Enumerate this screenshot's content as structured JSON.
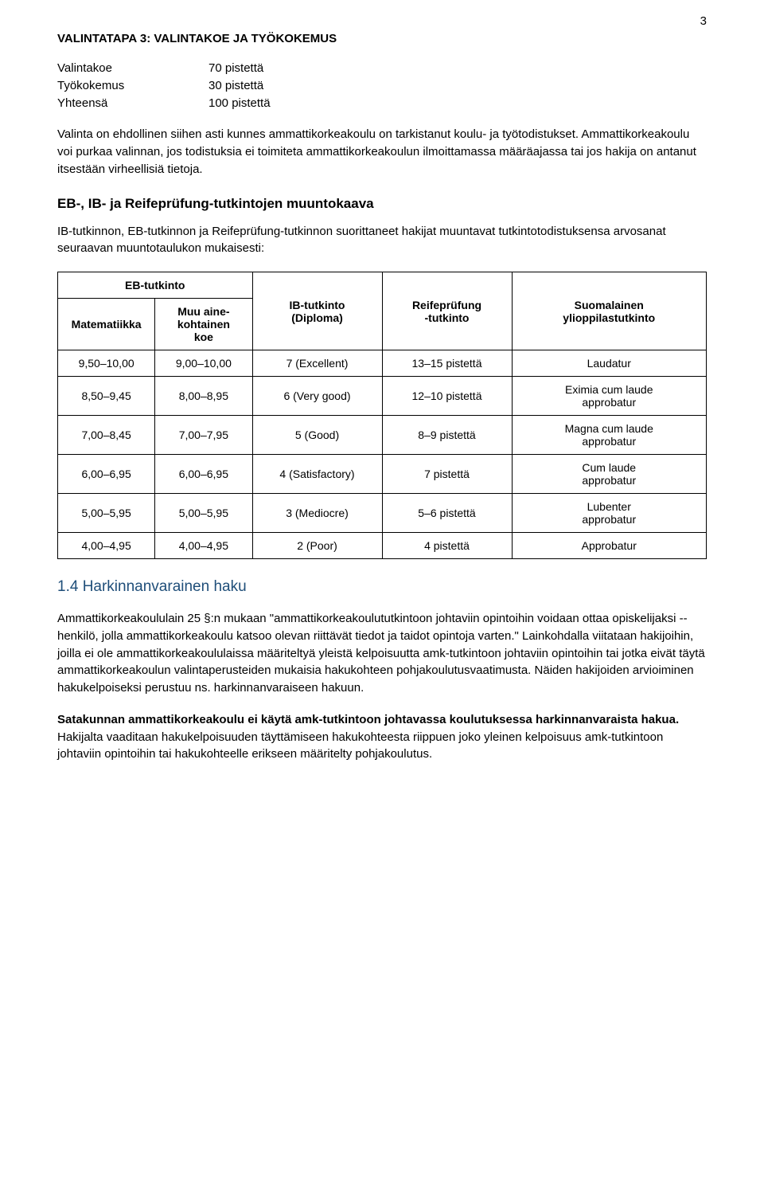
{
  "page_number": "3",
  "section_title": "VALINTATAPA 3: VALINTAKOE JA TYÖKOKEMUS",
  "points": {
    "rows": [
      {
        "label": "Valintakoe",
        "value": "70 pistettä"
      },
      {
        "label": "Työkokemus",
        "value": "30 pistettä"
      },
      {
        "label": "Yhteensä",
        "value": "100 pistettä"
      }
    ]
  },
  "para1": "Valinta on ehdollinen siihen asti kunnes ammattikorkeakoulu on tarkistanut koulu- ja työtodistukset. Ammattikorkeakoulu voi purkaa valinnan, jos todistuksia ei toimiteta ammattikorkeakoulun ilmoittamassa määräajassa tai jos hakija on antanut itsestään virheellisiä tietoja.",
  "kaava_title": "EB-, IB- ja Reifeprüfung-tutkintojen muuntokaava",
  "para2": "IB-tutkinnon, EB-tutkinnon ja Reifeprüfung-tutkinnon suorittaneet hakijat muuntavat tutkintotodistuksensa arvosanat seuraavan muuntotaulukon mukaisesti:",
  "table": {
    "header": {
      "eb": "EB-tutkinto",
      "eb_sub1": "Matematiikka",
      "eb_sub2": "Muu aine-\nkohtainen\nkoe",
      "ib": "IB-tutkinto\n(Diploma)",
      "rp": "Reifeprüfung\n-tutkinto",
      "su": "Suomalainen\nylioppilastutkinto"
    },
    "rows": [
      {
        "c1": "9,50–10,00",
        "c2": "9,00–10,00",
        "c3": "7 (Excellent)",
        "c4": "13–15 pistettä",
        "c5": "Laudatur"
      },
      {
        "c1": "8,50–9,45",
        "c2": "8,00–8,95",
        "c3": "6 (Very good)",
        "c4": "12–10 pistettä",
        "c5": "Eximia cum laude\napprobatur"
      },
      {
        "c1": "7,00–8,45",
        "c2": "7,00–7,95",
        "c3": "5 (Good)",
        "c4": "8–9 pistettä",
        "c5": "Magna cum laude\napprobatur"
      },
      {
        "c1": "6,00–6,95",
        "c2": "6,00–6,95",
        "c3": "4 (Satisfactory)",
        "c4": "7 pistettä",
        "c5": "Cum laude\napprobatur"
      },
      {
        "c1": "5,00–5,95",
        "c2": "5,00–5,95",
        "c3": "3 (Mediocre)",
        "c4": "5–6 pistettä",
        "c5": "Lubenter\napprobatur"
      },
      {
        "c1": "4,00–4,95",
        "c2": "4,00–4,95",
        "c3": "2  (Poor)",
        "c4": "4 pistettä",
        "c5": "Approbatur"
      }
    ]
  },
  "blue_heading": "1.4 Harkinnanvarainen haku",
  "para3": "Ammattikorkeakoululain 25 §:n mukaan \"ammattikorkeakoulututkintoon johtaviin opintoihin voidaan ottaa opiskelijaksi -- henkilö, jolla ammattikorkeakoulu katsoo olevan riittävät tiedot ja taidot opintoja varten.\" Lainkohdalla viitataan hakijoihin, joilla ei ole ammattikorkeakoululaissa määriteltyä yleistä kelpoisuutta amk-tutkintoon johtaviin opintoihin tai jotka eivät täytä ammattikorkeakoulun valintaperusteiden mukaisia hakukohteen pohjakoulutusvaatimusta. Näiden hakijoiden arvioiminen hakukelpoiseksi perustuu ns. harkinnanvaraiseen hakuun.",
  "para4_bold": "Satakunnan ammattikorkeakoulu ei käytä amk-tutkintoon johtavassa koulutuksessa harkinnanvaraista hakua.",
  "para4_rest": " Hakijalta vaaditaan hakukelpoisuuden täyttämiseen hakukohteesta riippuen joko yleinen kelpoisuus amk-tutkintoon johtaviin opintoihin tai hakukohteelle erikseen määritelty pohjakoulutus."
}
